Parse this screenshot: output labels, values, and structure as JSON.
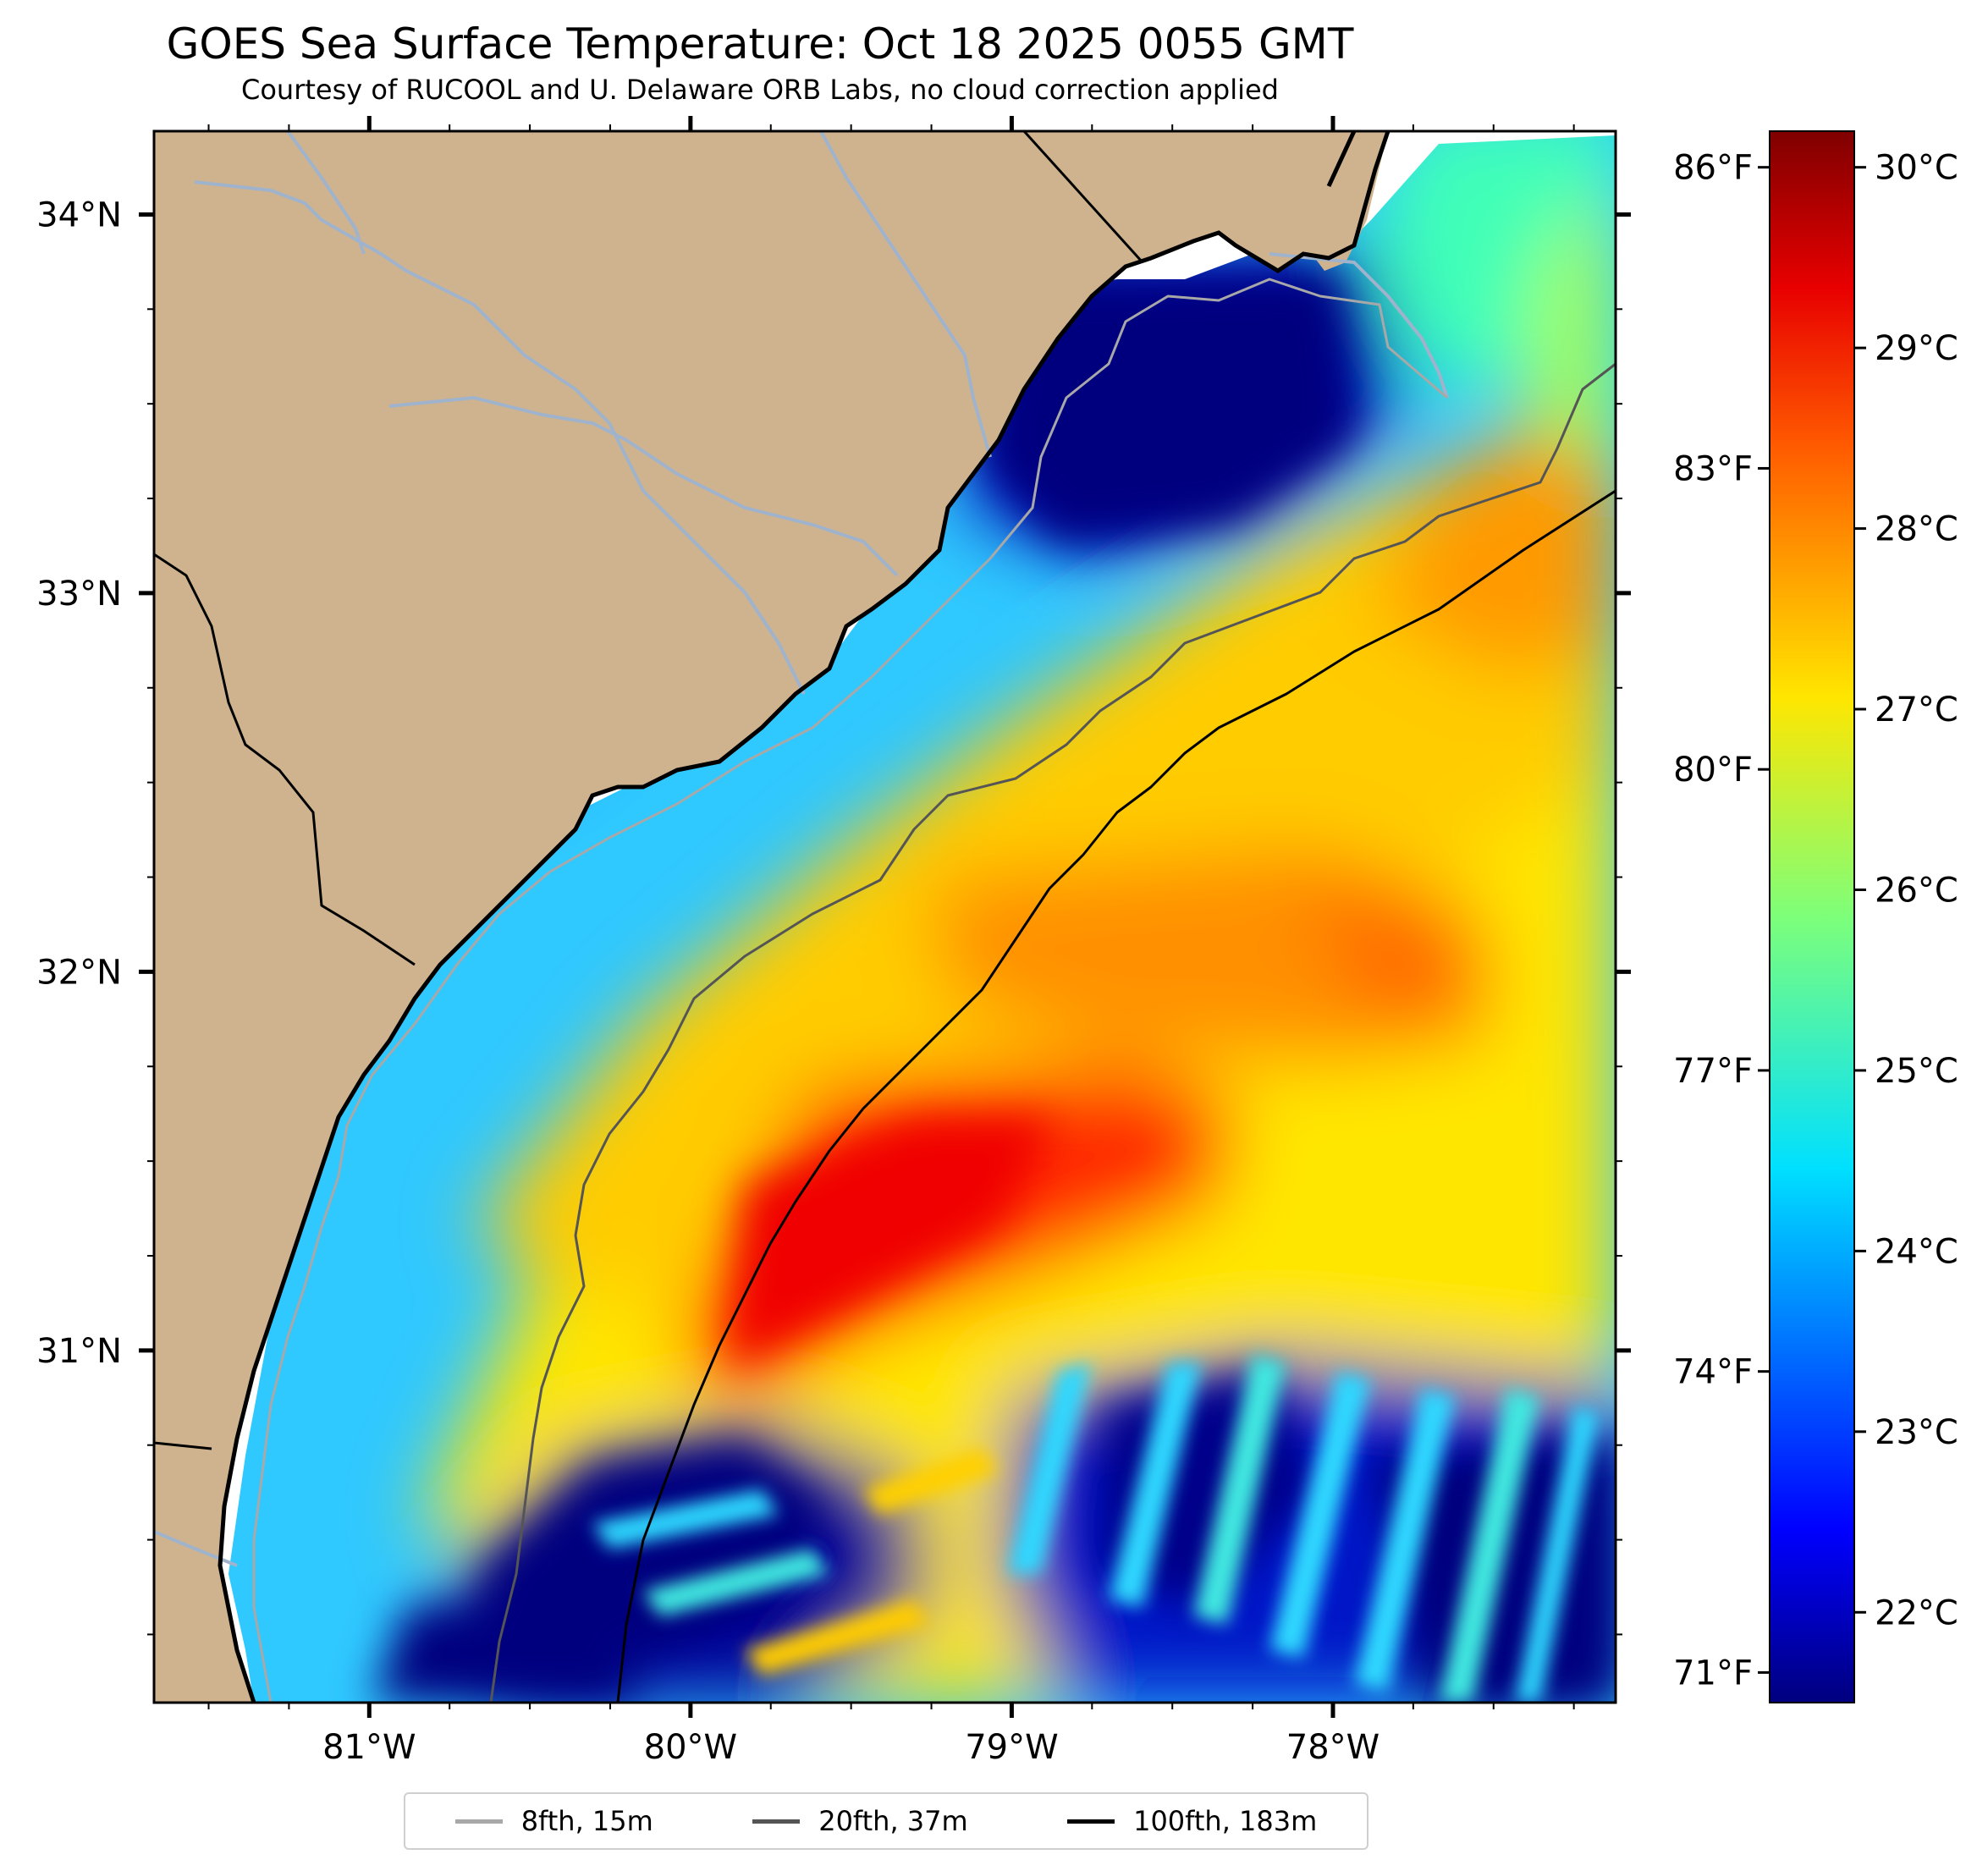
{
  "title": "GOES Sea Surface Temperature: Oct 18 2025 0055 GMT",
  "subtitle": "Courtesy of RUCOOL and U. Delaware ORB Labs, no cloud correction applied",
  "colors": {
    "land": "#cfb38e",
    "river": "#9fb3cc",
    "coast": "#000000",
    "iso8": "#a8a8a8",
    "iso20": "#555555",
    "iso100": "#000000"
  },
  "map": {
    "lon_range": [
      -81.67,
      -77.12
    ],
    "lat_range": [
      30.07,
      34.22
    ],
    "lon_ticks": [
      {
        "value": -81,
        "label": "81°W"
      },
      {
        "value": -80,
        "label": "80°W"
      },
      {
        "value": -79,
        "label": "79°W"
      },
      {
        "value": -78,
        "label": "78°W"
      }
    ],
    "lat_ticks": [
      {
        "value": 31,
        "label": "31°N"
      },
      {
        "value": 32,
        "label": "32°N"
      },
      {
        "value": 33,
        "label": "33°N"
      },
      {
        "value": 34,
        "label": "34°N"
      }
    ]
  },
  "colorbar": {
    "range_c": [
      21.5,
      30.2
    ],
    "celsius_ticks": [
      {
        "value": 22,
        "label": "22°C"
      },
      {
        "value": 23,
        "label": "23°C"
      },
      {
        "value": 24,
        "label": "24°C"
      },
      {
        "value": 25,
        "label": "25°C"
      },
      {
        "value": 26,
        "label": "26°C"
      },
      {
        "value": 27,
        "label": "27°C"
      },
      {
        "value": 28,
        "label": "28°C"
      },
      {
        "value": 29,
        "label": "29°C"
      },
      {
        "value": 30,
        "label": "30°C"
      }
    ],
    "fahrenheit_ticks": [
      {
        "value": 71,
        "label": "71°F"
      },
      {
        "value": 74,
        "label": "74°F"
      },
      {
        "value": 77,
        "label": "77°F"
      },
      {
        "value": 80,
        "label": "80°F"
      },
      {
        "value": 83,
        "label": "83°F"
      },
      {
        "value": 86,
        "label": "86°F"
      }
    ],
    "colormap": "jet"
  },
  "legend": {
    "items": [
      {
        "label": "8fth, 15m",
        "color": "#a8a8a8"
      },
      {
        "label": "20fth, 37m",
        "color": "#555555"
      },
      {
        "label": "100fth, 183m",
        "color": "#000000"
      }
    ]
  }
}
